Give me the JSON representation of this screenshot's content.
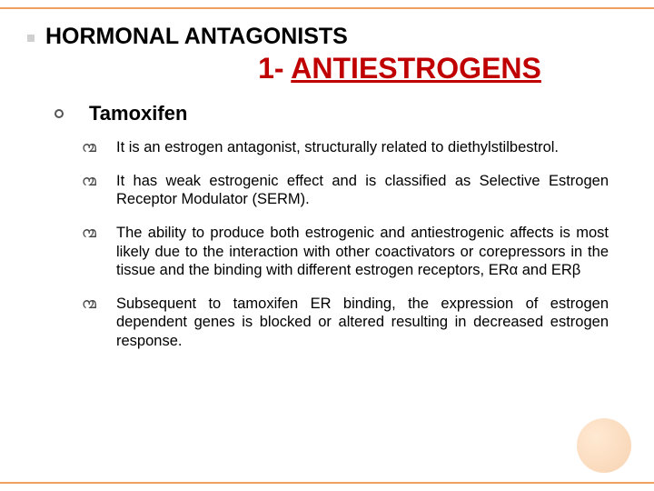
{
  "heading": "HORMONAL ANTAGONISTS",
  "subtitle_num": "1- ",
  "subtitle_text": "ANTIESTROGENS",
  "drug": "Tamoxifen",
  "points": [
    "It is an estrogen antagonist, structurally related to diethylstilbestrol.",
    "It has weak estrogenic effect and is classified as Selective Estrogen Receptor Modulator (SERM).",
    "The ability to produce both estrogenic and antiestrogenic affects is most likely due to the interaction with other coactivators or corepressors in the tissue and the binding with different estrogen receptors, ERα and ERβ",
    "Subsequent to tamoxifen ER binding, the expression of estrogen dependent genes is blocked or altered resulting in decreased estrogen response."
  ],
  "colors": {
    "accent_border": "#f0a060",
    "subtitle": "#c00000",
    "circle_light": "#ffe0c0",
    "circle_dark": "#f5c090"
  }
}
